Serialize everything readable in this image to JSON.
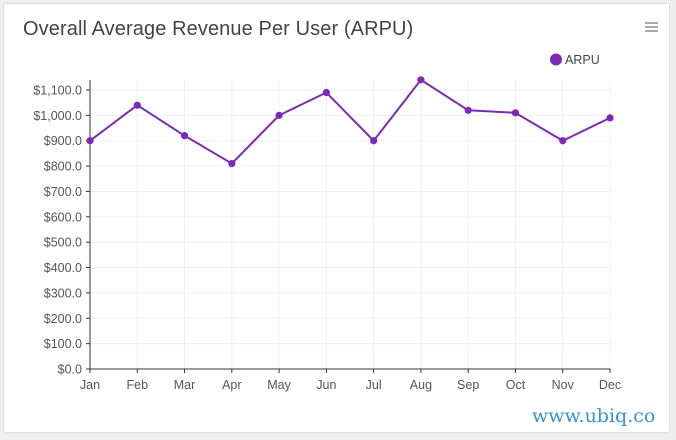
{
  "card": {
    "title": "Overall Average Revenue Per User (ARPU)",
    "menu_icon": "hamburger-menu-icon"
  },
  "watermark": "www.ubiq.co",
  "colors": {
    "series": "#7b2ab8",
    "axis": "#333333",
    "grid": "#f0f0f0",
    "title": "#444444",
    "watermark": "#3a8fd6"
  },
  "chart_data": {
    "type": "line",
    "title": "Overall Average Revenue Per User (ARPU)",
    "categories": [
      "Jan",
      "Feb",
      "Mar",
      "Apr",
      "May",
      "Jun",
      "Jul",
      "Aug",
      "Sep",
      "Oct",
      "Nov",
      "Dec"
    ],
    "series": [
      {
        "name": "ARPU",
        "values": [
          900,
          1040,
          920,
          810,
          1000,
          1090,
          900,
          1140,
          1020,
          1010,
          900,
          990
        ]
      }
    ],
    "y_ticks": [
      "$0.0",
      "$100.0",
      "$200.0",
      "$300.0",
      "$400.0",
      "$500.0",
      "$600.0",
      "$700.0",
      "$800.0",
      "$900.0",
      "$1,000.0",
      "$1,100.0"
    ],
    "ylim": [
      0,
      1100
    ],
    "xlabel": "",
    "ylabel": "",
    "grid": true,
    "legend_position": "top-right"
  }
}
